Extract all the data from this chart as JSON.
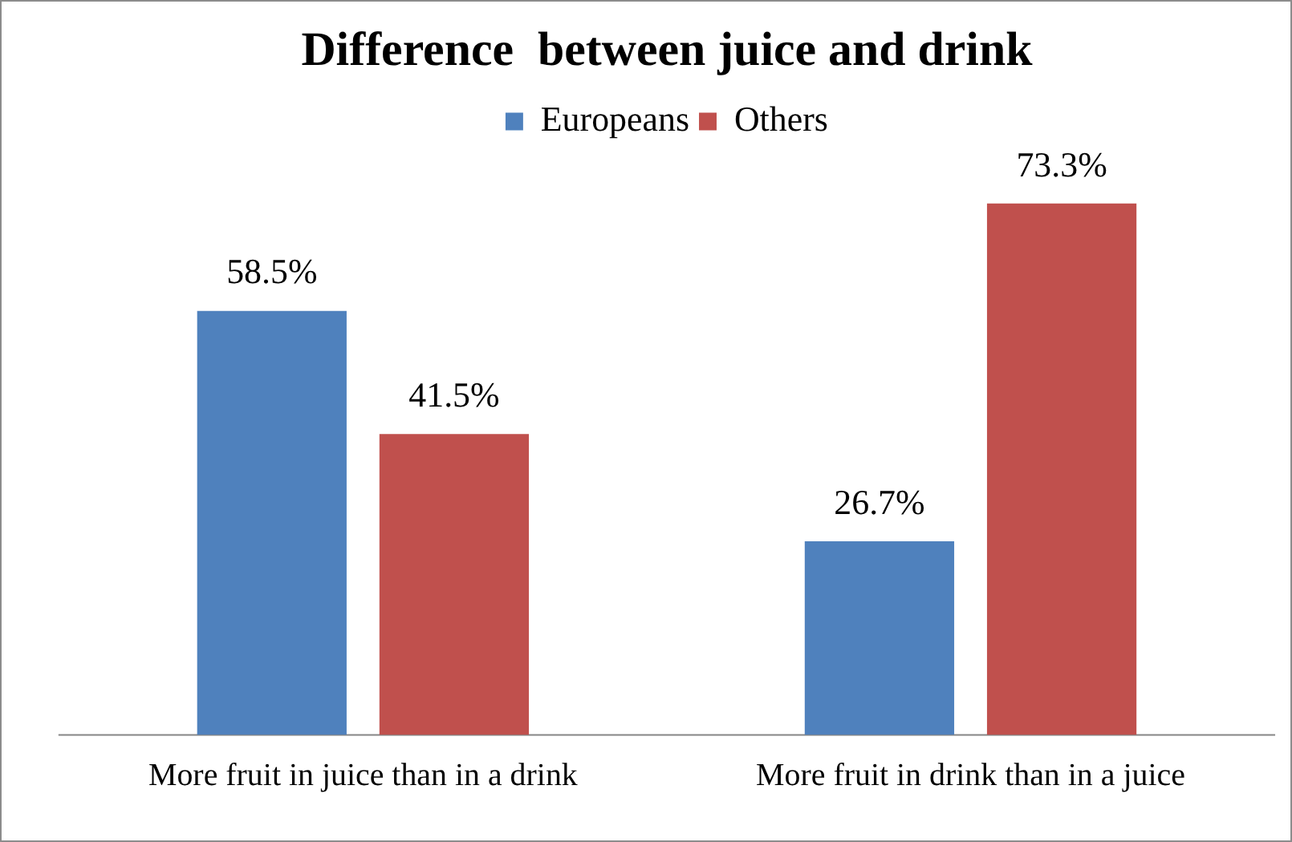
{
  "chart_data": {
    "type": "bar",
    "title": "Difference  between juice and drink",
    "categories": [
      "More fruit in juice than in a drink",
      "More fruit in drink than in a juice"
    ],
    "series": [
      {
        "name": "Europeans",
        "color": "#4f81bd",
        "values": [
          58.5,
          26.7
        ],
        "value_labels": [
          "58.5%",
          "26.7%"
        ]
      },
      {
        "name": "Others",
        "color": "#c0504d",
        "values": [
          41.5,
          73.3
        ],
        "value_labels": [
          "41.5%",
          "73.3%"
        ]
      }
    ],
    "legend": "top",
    "grid": false
  }
}
